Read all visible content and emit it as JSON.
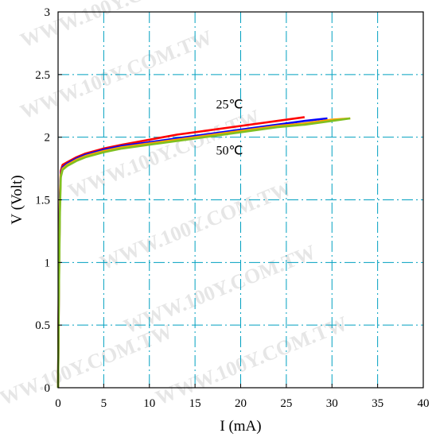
{
  "chart_data": {
    "type": "line",
    "title": "",
    "xlabel": "I (mA)",
    "ylabel": "V (Volt)",
    "xlim": [
      0,
      40
    ],
    "ylim": [
      0,
      3
    ],
    "xticks": [
      "0",
      "5",
      "10",
      "15",
      "20",
      "25",
      "30",
      "35",
      "40"
    ],
    "yticks": [
      "0",
      "0.5",
      "1",
      "1.5",
      "2",
      "2.5",
      "3"
    ],
    "grid": true,
    "grid_style": "dash-dot",
    "grid_color": "#00a0c0",
    "annotations": [
      "25℃",
      "50℃"
    ],
    "watermark": "WWW.100Y.COM.TW",
    "series": [
      {
        "color": "#ff0000",
        "x": [
          0,
          0.1,
          0.2,
          0.3,
          0.5,
          1,
          2,
          3,
          5,
          7,
          10,
          13,
          16,
          20,
          24,
          27
        ],
        "y": [
          0,
          1.0,
          1.55,
          1.73,
          1.78,
          1.8,
          1.84,
          1.87,
          1.91,
          1.94,
          1.98,
          2.02,
          2.05,
          2.09,
          2.13,
          2.16
        ]
      },
      {
        "color": "#0000ff",
        "x": [
          0,
          0.1,
          0.2,
          0.3,
          0.5,
          1,
          2,
          3,
          5,
          7,
          10,
          13,
          16,
          20,
          24,
          27,
          29.5
        ],
        "y": [
          0,
          0.9,
          1.5,
          1.71,
          1.76,
          1.79,
          1.83,
          1.86,
          1.9,
          1.93,
          1.96,
          1.99,
          2.02,
          2.06,
          2.1,
          2.13,
          2.15
        ]
      },
      {
        "color": "#ffa000",
        "x": [
          0,
          0.1,
          0.2,
          0.3,
          0.5,
          1,
          2,
          3,
          5,
          7,
          10,
          13,
          16,
          20,
          24,
          27,
          30,
          32
        ],
        "y": [
          0,
          0.85,
          1.45,
          1.7,
          1.75,
          1.78,
          1.82,
          1.85,
          1.89,
          1.92,
          1.95,
          1.98,
          2.01,
          2.05,
          2.09,
          2.11,
          2.14,
          2.15
        ]
      },
      {
        "color": "#80c020",
        "x": [
          0,
          0.1,
          0.2,
          0.3,
          0.5,
          1,
          2,
          3,
          5,
          7,
          10,
          13,
          16,
          20,
          24,
          27,
          30,
          32
        ],
        "y": [
          0,
          0.8,
          1.4,
          1.68,
          1.74,
          1.77,
          1.81,
          1.84,
          1.88,
          1.91,
          1.94,
          1.97,
          2.0,
          2.04,
          2.08,
          2.1,
          2.13,
          2.15
        ]
      }
    ]
  }
}
